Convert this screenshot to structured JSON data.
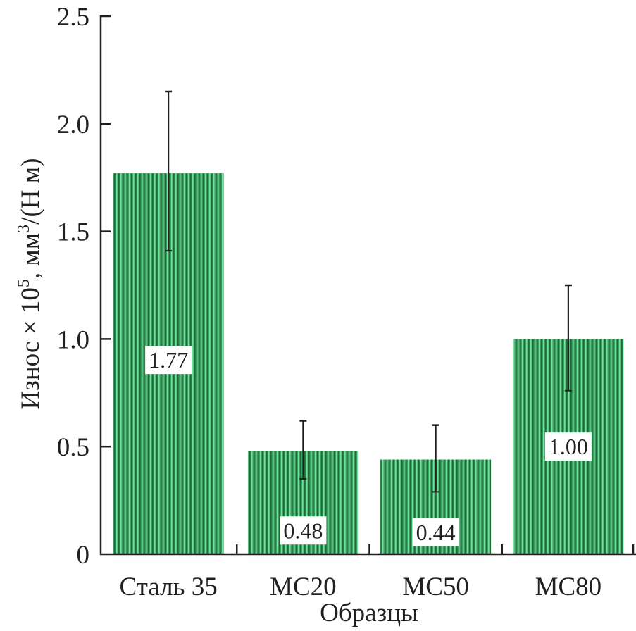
{
  "chart_data": {
    "type": "bar",
    "title": "",
    "xlabel": "Образцы",
    "ylabel": {
      "prefix": "Износ × 10",
      "exp1": "5",
      "mid": ", мм",
      "exp2": "3",
      "suffix": "/(Н м)"
    },
    "ylim": [
      0,
      2.5
    ],
    "yticks": [
      0,
      0.5,
      1.0,
      1.5,
      2.0,
      2.5
    ],
    "ytick_labels": [
      "0",
      "0.5",
      "1.0",
      "1.5",
      "2.0",
      "2.5"
    ],
    "grid": false,
    "categories": [
      "Сталь 35",
      "МС20",
      "МС50",
      "МС80"
    ],
    "values": [
      1.77,
      0.48,
      0.44,
      1.0
    ],
    "data_labels": [
      "1.77",
      "0.48",
      "0.44",
      "1.00"
    ],
    "error_bars": [
      {
        "upper": 2.15,
        "lower": 1.41
      },
      {
        "upper": 0.62,
        "lower": 0.35
      },
      {
        "upper": 0.6,
        "lower": 0.29
      },
      {
        "upper": 1.25,
        "lower": 0.76
      }
    ],
    "bar_color": "#2ea35a",
    "bar_stripe_dark": "#1d6b3a",
    "bar_stripe_light": "#9fdcb2",
    "axis_color": "#231f20"
  }
}
